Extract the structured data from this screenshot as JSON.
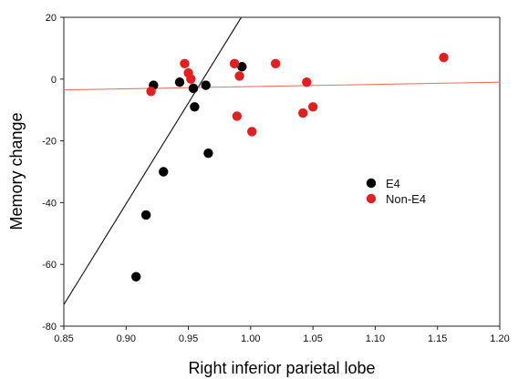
{
  "chart_data": {
    "type": "scatter",
    "title": "",
    "xlabel": "Right inferior parietal lobe",
    "ylabel": "Memory change",
    "xlim": [
      0.85,
      1.2
    ],
    "ylim": [
      -80,
      20
    ],
    "x_ticks": [
      "0.85",
      "0.90",
      "0.95",
      "1.00",
      "1.05",
      "1.10",
      "1.15",
      "1.20"
    ],
    "y_ticks": [
      "-80",
      "-60",
      "-40",
      "-20",
      "0",
      "20"
    ],
    "grid": false,
    "legend_position": "right",
    "series": [
      {
        "name": "E4",
        "color": "#000000",
        "points": [
          {
            "x": 0.908,
            "y": -64
          },
          {
            "x": 0.916,
            "y": -44
          },
          {
            "x": 0.93,
            "y": -30
          },
          {
            "x": 0.922,
            "y": -2
          },
          {
            "x": 0.943,
            "y": -1
          },
          {
            "x": 0.954,
            "y": -3
          },
          {
            "x": 0.955,
            "y": -9
          },
          {
            "x": 0.964,
            "y": -2
          },
          {
            "x": 0.966,
            "y": -24
          },
          {
            "x": 0.993,
            "y": 4
          }
        ],
        "fit_line": {
          "x": [
            0.85,
            0.9925
          ],
          "y": [
            -73,
            20
          ]
        }
      },
      {
        "name": "Non-E4",
        "color": "#e02020",
        "points": [
          {
            "x": 0.92,
            "y": -4
          },
          {
            "x": 0.947,
            "y": 5
          },
          {
            "x": 0.95,
            "y": 2
          },
          {
            "x": 0.952,
            "y": 0
          },
          {
            "x": 0.987,
            "y": 5
          },
          {
            "x": 0.989,
            "y": -12
          },
          {
            "x": 0.991,
            "y": 1
          },
          {
            "x": 1.001,
            "y": -17
          },
          {
            "x": 1.02,
            "y": 5
          },
          {
            "x": 1.042,
            "y": -11
          },
          {
            "x": 1.045,
            "y": -1
          },
          {
            "x": 1.05,
            "y": -9
          },
          {
            "x": 1.155,
            "y": 7
          }
        ],
        "fit_line": {
          "x": [
            0.85,
            1.2
          ],
          "y": [
            -3.5,
            -1
          ]
        }
      }
    ]
  }
}
